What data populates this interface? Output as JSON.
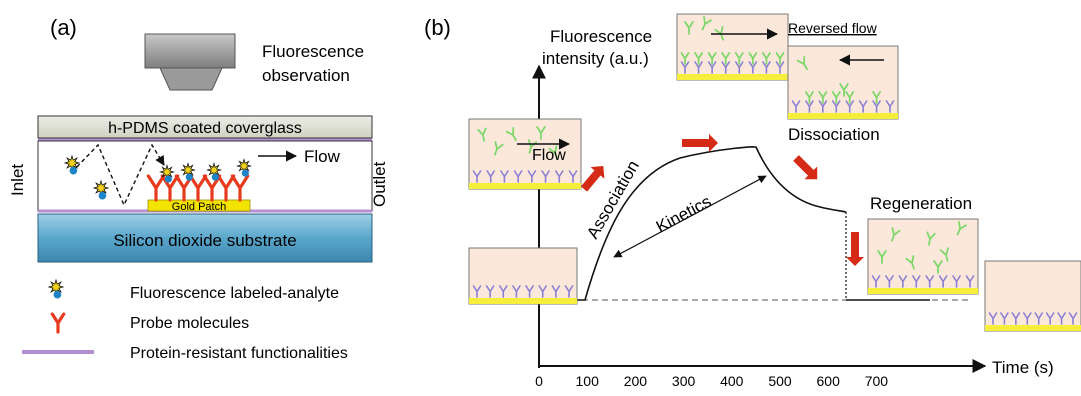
{
  "panel_a": {
    "label": "(a)",
    "fluorescence_observation": [
      "Fluorescence",
      "observation"
    ],
    "coverglass_label": "h-PDMS coated coverglass",
    "flow_label": "Flow",
    "inlet_label": "Inlet",
    "outlet_label": "Outlet",
    "gold_patch_label": "Gold Patch",
    "substrate_label": "Silicon dioxide substrate",
    "legend": [
      {
        "icon": "labeled-analyte-icon",
        "text": "Fluorescence labeled-analyte"
      },
      {
        "icon": "probe-molecule-icon",
        "text": "Probe molecules"
      },
      {
        "icon": "protein-resistant-line-icon",
        "text": "Protein-resistant functionalities"
      }
    ],
    "colors": {
      "probe": "#e83a1c",
      "gold": "#f2e300",
      "substrate": "#5aa7cc",
      "coverglass": "#dfe0d2",
      "functional_line": "#b48fd2",
      "analyte_star": "#f2d21a",
      "analyte_dot": "#1d84c8"
    }
  },
  "panel_b": {
    "label": "(b)",
    "y_axis_label": [
      "Fluorescence",
      "intensity (a.u.)"
    ],
    "x_axis_label": "Time (s)",
    "x_ticks": [
      "0",
      "100",
      "200",
      "300",
      "400",
      "500",
      "600",
      "700"
    ],
    "flow_label": "Flow",
    "reversed_flow_label": "Reversed flow",
    "dissociation_label": "Dissociation",
    "regeneration_label": "Regeneration",
    "association_label": "Association",
    "kinetics_label": "Kinetics",
    "colors": {
      "inset_bg": "#fbe8da",
      "inset_base": "#f5ee3a",
      "bound_antibody": "#8a7fd4",
      "free_analyte": "#7ed76b",
      "phase_arrow": "#d42a16"
    }
  }
}
